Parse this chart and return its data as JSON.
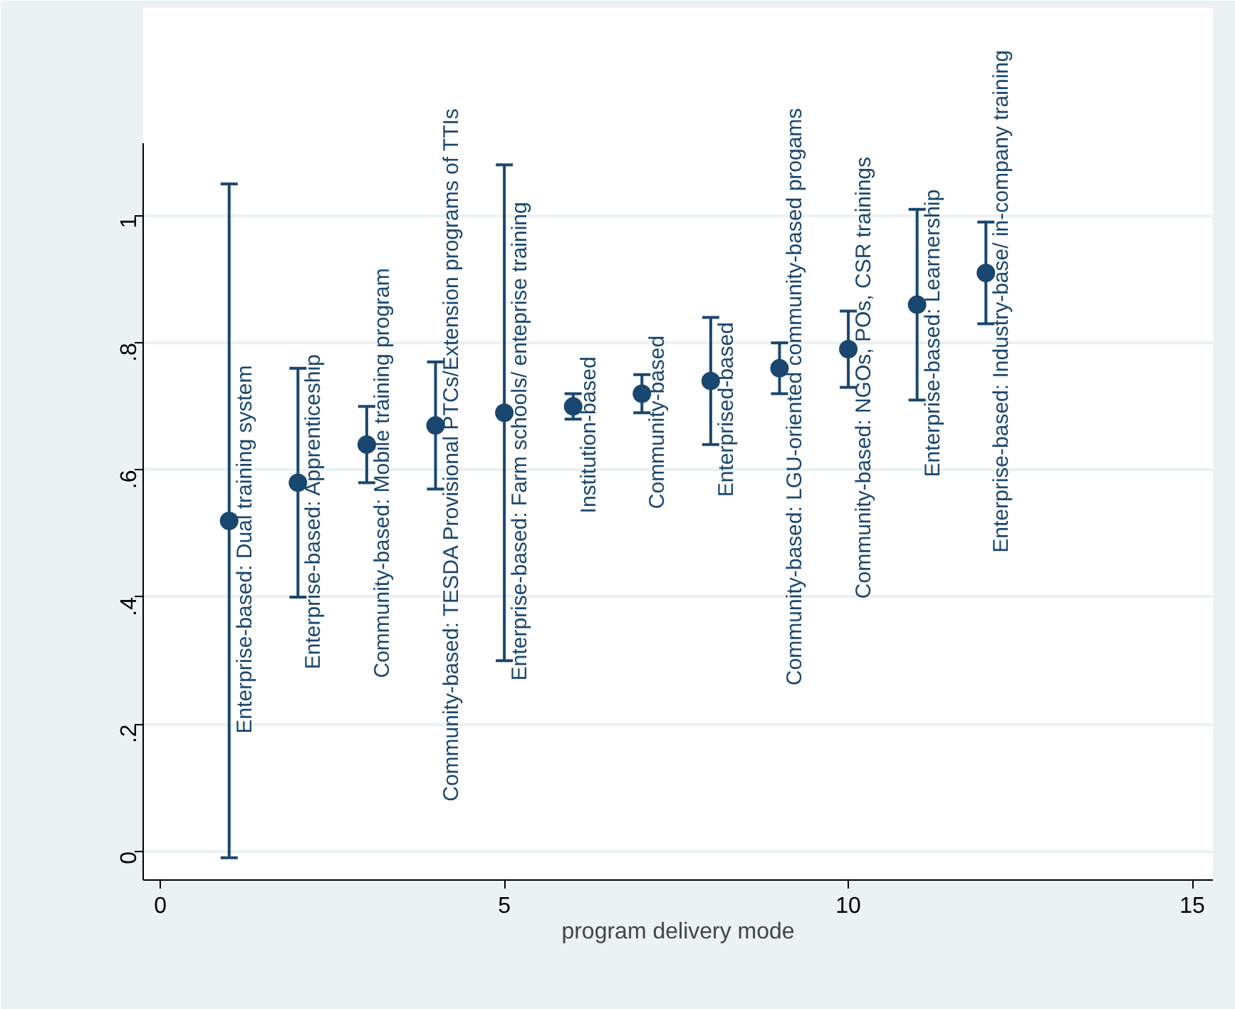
{
  "chart_data": {
    "type": "scatter",
    "xlabel": "program delivery mode",
    "x": [
      1,
      2,
      3,
      4,
      5,
      6,
      7,
      8,
      9,
      10,
      11,
      12
    ],
    "series": [
      {
        "color": "#1a476f",
        "values": [
          0.52,
          0.58,
          0.64,
          0.67,
          0.69,
          0.7,
          0.72,
          0.74,
          0.76,
          0.79,
          0.86,
          0.91
        ],
        "errors": [
          [
            -0.01,
            1.05
          ],
          [
            0.4,
            0.76
          ],
          [
            0.58,
            0.7
          ],
          [
            0.57,
            0.77
          ],
          [
            0.3,
            1.08
          ],
          [
            0.68,
            0.72
          ],
          [
            0.69,
            0.75
          ],
          [
            0.64,
            0.84
          ],
          [
            0.72,
            0.8
          ],
          [
            0.73,
            0.85
          ],
          [
            0.71,
            1.01
          ],
          [
            0.83,
            0.99
          ]
        ]
      }
    ],
    "annotations": [
      {
        "text": "Enterprise-based: Dual training system",
        "x": 1,
        "y": 0.52
      },
      {
        "text": "Enterprise-based: Apprenticeship",
        "x": 2,
        "y": 0.58
      },
      {
        "text": "Community-based: Mobile training program",
        "x": 3,
        "y": 0.64
      },
      {
        "text": "Community-based: TESDA Provisional PTCs/Extension programs of TTIs",
        "x": 4,
        "y": 0.67
      },
      {
        "text": "Enterprise-based: Farm schools/ enteprise training",
        "x": 5,
        "y": 0.69
      },
      {
        "text": "Institution-based",
        "x": 6,
        "y": 0.7
      },
      {
        "text": "Community-based",
        "x": 7,
        "y": 0.72
      },
      {
        "text": "Enterprised-based",
        "x": 8,
        "y": 0.74
      },
      {
        "text": "Community-based: LGU-oriented community-based progams",
        "x": 9,
        "y": 0.76
      },
      {
        "text": "Community-based: NGOs, POs, CSR trainings",
        "x": 10,
        "y": 0.79
      },
      {
        "text": "Enterprise-based: Learnership",
        "x": 11,
        "y": 0.86
      },
      {
        "text": "Enterprise-based: Industry-base/ in-company training",
        "x": 12,
        "y": 0.91
      }
    ],
    "xlim": [
      -0.25,
      15.3
    ],
    "xticks": [
      0,
      5,
      10,
      15
    ],
    "ylim": [
      -0.045,
      1.114
    ],
    "yticks": [
      0,
      {
        "value": 0.2,
        "label": ".2"
      },
      {
        "value": 0.4,
        "label": ".4"
      },
      {
        "value": 0.6,
        "label": ".6"
      },
      {
        "value": 0.8,
        "label": ".8"
      },
      1
    ],
    "grid": "y",
    "marker": "circle"
  }
}
